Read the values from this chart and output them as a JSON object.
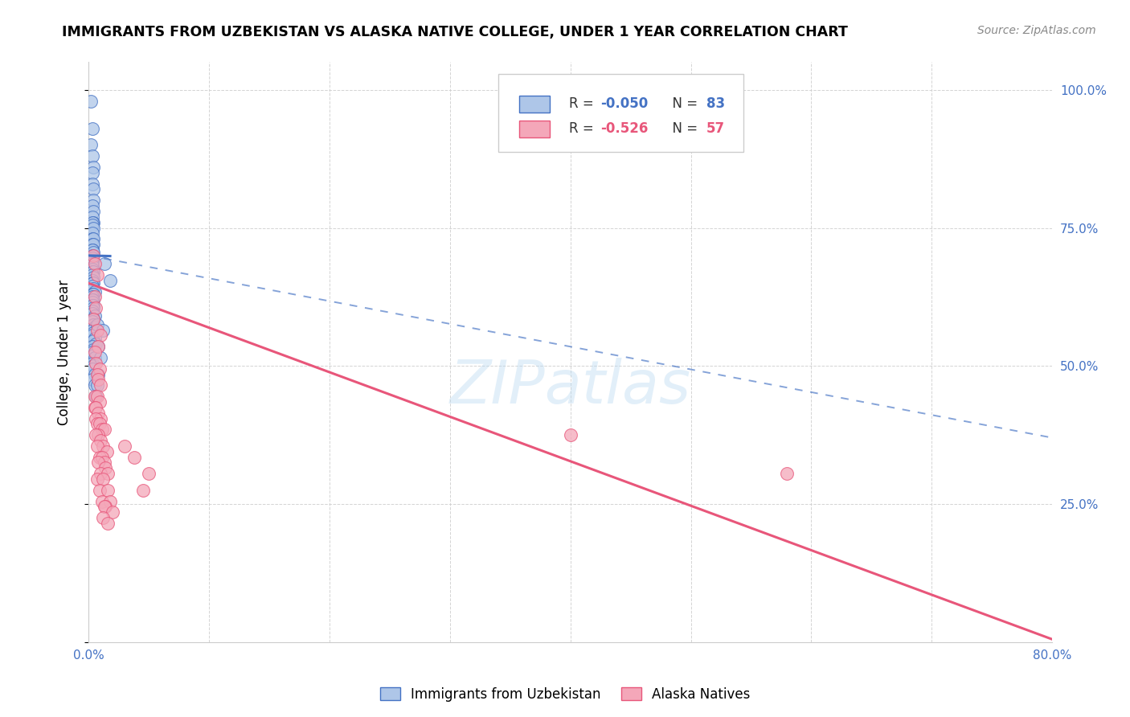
{
  "title": "IMMIGRANTS FROM UZBEKISTAN VS ALASKA NATIVE COLLEGE, UNDER 1 YEAR CORRELATION CHART",
  "source": "Source: ZipAtlas.com",
  "ylabel": "College, Under 1 year",
  "xlim": [
    0.0,
    0.8
  ],
  "ylim": [
    0.0,
    1.05
  ],
  "ytick_values": [
    0.0,
    0.25,
    0.5,
    0.75,
    1.0
  ],
  "xtick_values": [
    0.0,
    0.1,
    0.2,
    0.3,
    0.4,
    0.5,
    0.6,
    0.7,
    0.8
  ],
  "background_color": "#ffffff",
  "watermark": "ZIPatlas",
  "blue_scatter_color_face": "#aec6e8",
  "blue_scatter_color_edge": "#4472c4",
  "pink_scatter_color_face": "#f4a7b9",
  "pink_scatter_color_edge": "#e8567a",
  "blue_line_color": "#4472c4",
  "pink_line_color": "#e8567a",
  "blue_points": [
    [
      0.002,
      0.98
    ],
    [
      0.003,
      0.93
    ],
    [
      0.002,
      0.9
    ],
    [
      0.003,
      0.88
    ],
    [
      0.004,
      0.86
    ],
    [
      0.003,
      0.85
    ],
    [
      0.003,
      0.83
    ],
    [
      0.004,
      0.82
    ],
    [
      0.004,
      0.8
    ],
    [
      0.003,
      0.79
    ],
    [
      0.004,
      0.78
    ],
    [
      0.003,
      0.77
    ],
    [
      0.004,
      0.76
    ],
    [
      0.003,
      0.76
    ],
    [
      0.003,
      0.755
    ],
    [
      0.004,
      0.75
    ],
    [
      0.003,
      0.74
    ],
    [
      0.003,
      0.73
    ],
    [
      0.004,
      0.73
    ],
    [
      0.003,
      0.72
    ],
    [
      0.004,
      0.72
    ],
    [
      0.003,
      0.71
    ],
    [
      0.003,
      0.71
    ],
    [
      0.004,
      0.705
    ],
    [
      0.003,
      0.7
    ],
    [
      0.003,
      0.695
    ],
    [
      0.004,
      0.69
    ],
    [
      0.003,
      0.685
    ],
    [
      0.004,
      0.68
    ],
    [
      0.003,
      0.675
    ],
    [
      0.003,
      0.67
    ],
    [
      0.004,
      0.67
    ],
    [
      0.003,
      0.665
    ],
    [
      0.004,
      0.66
    ],
    [
      0.003,
      0.655
    ],
    [
      0.003,
      0.65
    ],
    [
      0.004,
      0.65
    ],
    [
      0.003,
      0.645
    ],
    [
      0.004,
      0.64
    ],
    [
      0.005,
      0.635
    ],
    [
      0.003,
      0.63
    ],
    [
      0.004,
      0.63
    ],
    [
      0.003,
      0.625
    ],
    [
      0.004,
      0.62
    ],
    [
      0.003,
      0.62
    ],
    [
      0.003,
      0.615
    ],
    [
      0.004,
      0.61
    ],
    [
      0.003,
      0.61
    ],
    [
      0.004,
      0.605
    ],
    [
      0.003,
      0.6
    ],
    [
      0.003,
      0.595
    ],
    [
      0.005,
      0.59
    ],
    [
      0.004,
      0.585
    ],
    [
      0.003,
      0.58
    ],
    [
      0.004,
      0.575
    ],
    [
      0.005,
      0.57
    ],
    [
      0.003,
      0.565
    ],
    [
      0.004,
      0.56
    ],
    [
      0.003,
      0.555
    ],
    [
      0.005,
      0.55
    ],
    [
      0.004,
      0.545
    ],
    [
      0.006,
      0.54
    ],
    [
      0.003,
      0.535
    ],
    [
      0.004,
      0.53
    ],
    [
      0.003,
      0.525
    ],
    [
      0.004,
      0.52
    ],
    [
      0.005,
      0.515
    ],
    [
      0.003,
      0.505
    ],
    [
      0.004,
      0.5
    ],
    [
      0.003,
      0.495
    ],
    [
      0.005,
      0.485
    ],
    [
      0.003,
      0.475
    ],
    [
      0.005,
      0.465
    ],
    [
      0.013,
      0.685
    ],
    [
      0.018,
      0.655
    ],
    [
      0.007,
      0.575
    ],
    [
      0.012,
      0.565
    ],
    [
      0.008,
      0.535
    ],
    [
      0.01,
      0.515
    ],
    [
      0.008,
      0.485
    ],
    [
      0.007,
      0.465
    ],
    [
      0.006,
      0.445
    ]
  ],
  "pink_points": [
    [
      0.004,
      0.7
    ],
    [
      0.005,
      0.685
    ],
    [
      0.007,
      0.665
    ],
    [
      0.005,
      0.625
    ],
    [
      0.006,
      0.605
    ],
    [
      0.004,
      0.585
    ],
    [
      0.007,
      0.565
    ],
    [
      0.01,
      0.555
    ],
    [
      0.008,
      0.535
    ],
    [
      0.005,
      0.525
    ],
    [
      0.006,
      0.505
    ],
    [
      0.009,
      0.495
    ],
    [
      0.007,
      0.485
    ],
    [
      0.008,
      0.475
    ],
    [
      0.01,
      0.465
    ],
    [
      0.005,
      0.445
    ],
    [
      0.007,
      0.445
    ],
    [
      0.009,
      0.435
    ],
    [
      0.005,
      0.425
    ],
    [
      0.006,
      0.425
    ],
    [
      0.008,
      0.415
    ],
    [
      0.01,
      0.405
    ],
    [
      0.006,
      0.405
    ],
    [
      0.007,
      0.395
    ],
    [
      0.009,
      0.395
    ],
    [
      0.011,
      0.385
    ],
    [
      0.013,
      0.385
    ],
    [
      0.008,
      0.375
    ],
    [
      0.006,
      0.375
    ],
    [
      0.01,
      0.365
    ],
    [
      0.012,
      0.355
    ],
    [
      0.007,
      0.355
    ],
    [
      0.015,
      0.345
    ],
    [
      0.009,
      0.335
    ],
    [
      0.011,
      0.335
    ],
    [
      0.013,
      0.325
    ],
    [
      0.008,
      0.325
    ],
    [
      0.014,
      0.315
    ],
    [
      0.01,
      0.305
    ],
    [
      0.016,
      0.305
    ],
    [
      0.007,
      0.295
    ],
    [
      0.012,
      0.295
    ],
    [
      0.009,
      0.275
    ],
    [
      0.016,
      0.275
    ],
    [
      0.011,
      0.255
    ],
    [
      0.018,
      0.255
    ],
    [
      0.014,
      0.245
    ],
    [
      0.013,
      0.245
    ],
    [
      0.02,
      0.235
    ],
    [
      0.012,
      0.225
    ],
    [
      0.016,
      0.215
    ],
    [
      0.03,
      0.355
    ],
    [
      0.038,
      0.335
    ],
    [
      0.05,
      0.305
    ],
    [
      0.045,
      0.275
    ],
    [
      0.4,
      0.375
    ],
    [
      0.58,
      0.305
    ]
  ],
  "blue_solid_line": {
    "x0": 0.0,
    "y0": 0.7,
    "x1": 0.018,
    "y1": 0.699
  },
  "blue_dash_line": {
    "x0": 0.0,
    "y0": 0.7,
    "x1": 0.8,
    "y1": 0.37
  },
  "pink_solid_line": {
    "x0": 0.0,
    "y0": 0.65,
    "x1": 0.8,
    "y1": 0.005
  }
}
